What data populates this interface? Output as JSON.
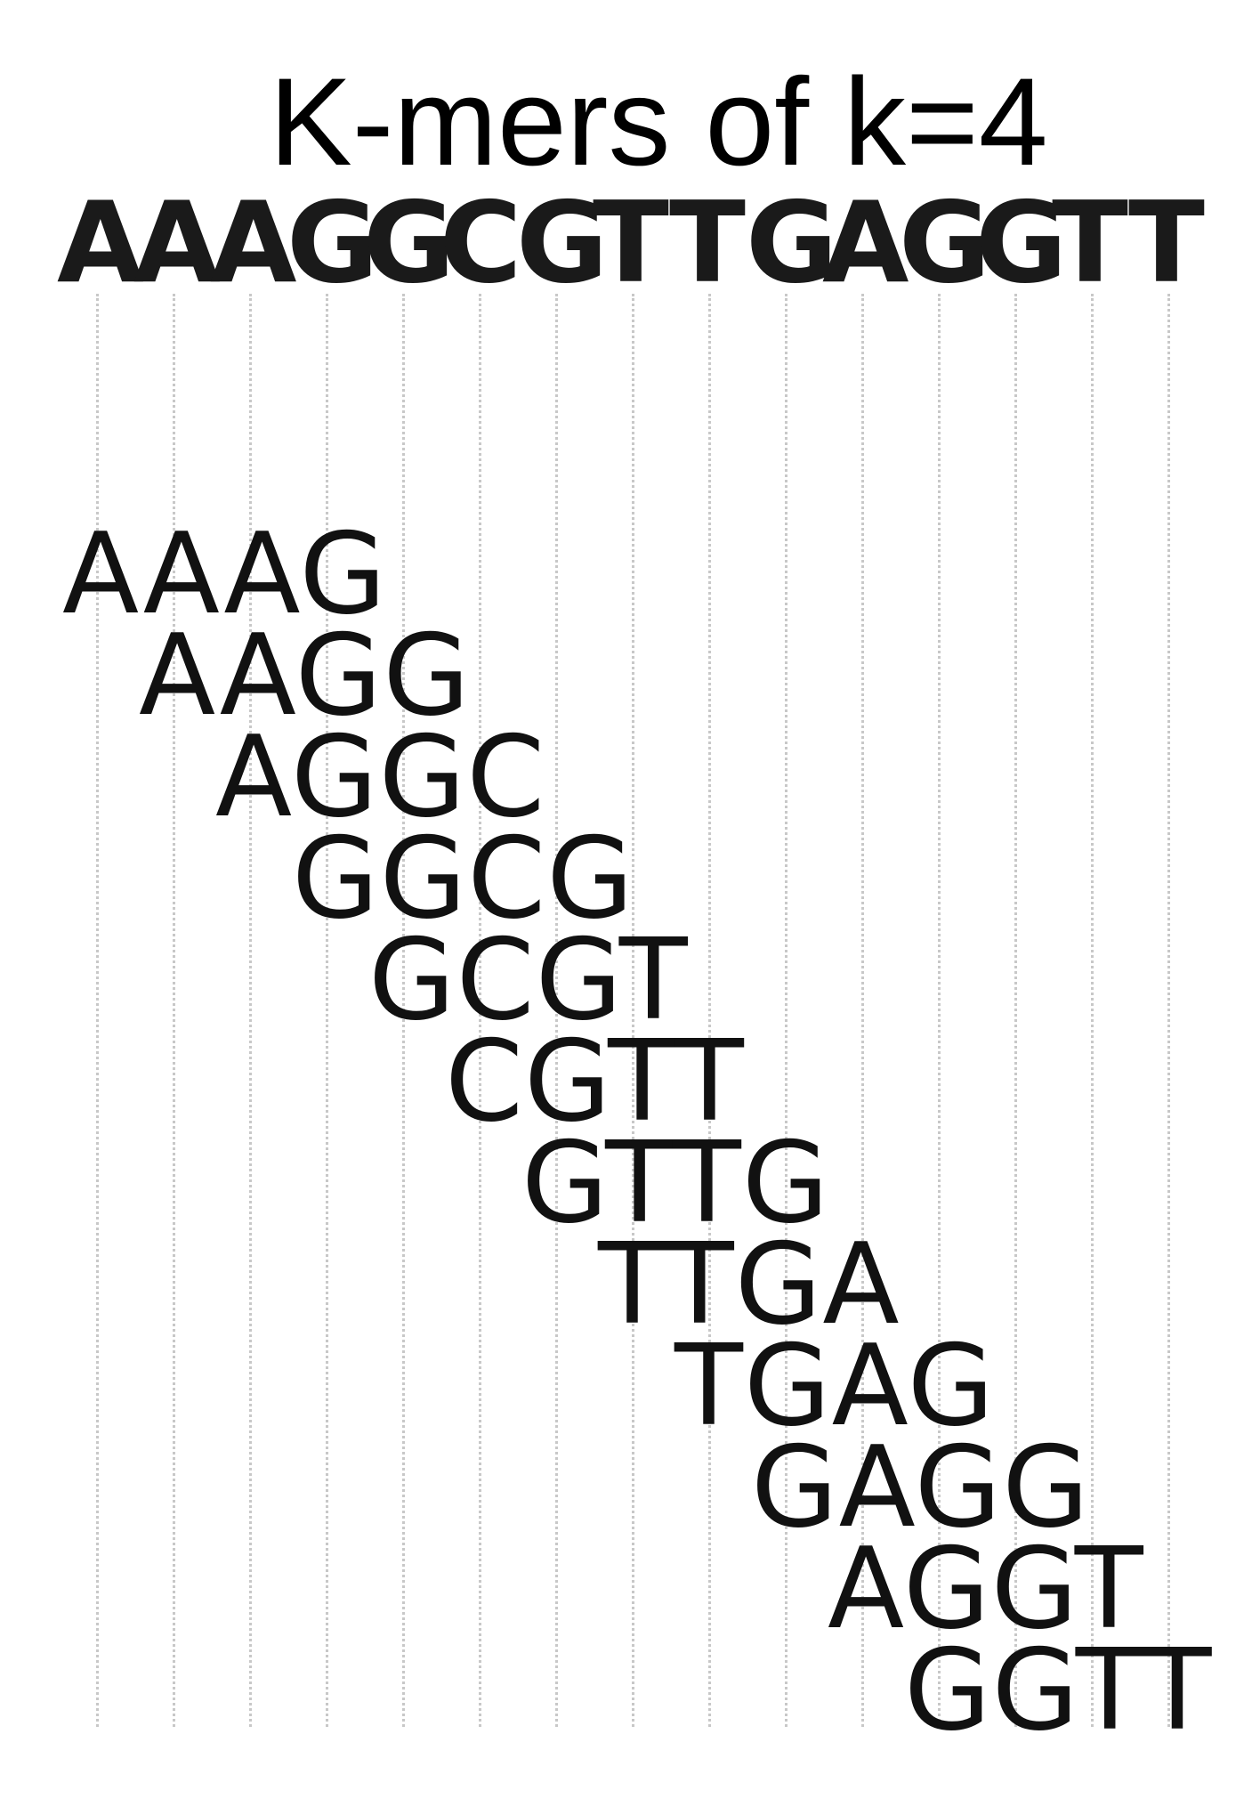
{
  "title": "K-mers of k=4",
  "sequence": "AAAGGCGTTGAGGTT",
  "kmers": [
    "AAAG",
    "AAGG",
    "AGGC",
    "GGCG",
    "GCGT",
    "CGTT",
    "GTTG",
    "TTGA",
    "TGAG",
    "GAGG",
    "AGGT",
    "GGTT"
  ],
  "colors": {
    "text": "#111111",
    "guide": "#c8c8c8",
    "background": "#ffffff"
  }
}
